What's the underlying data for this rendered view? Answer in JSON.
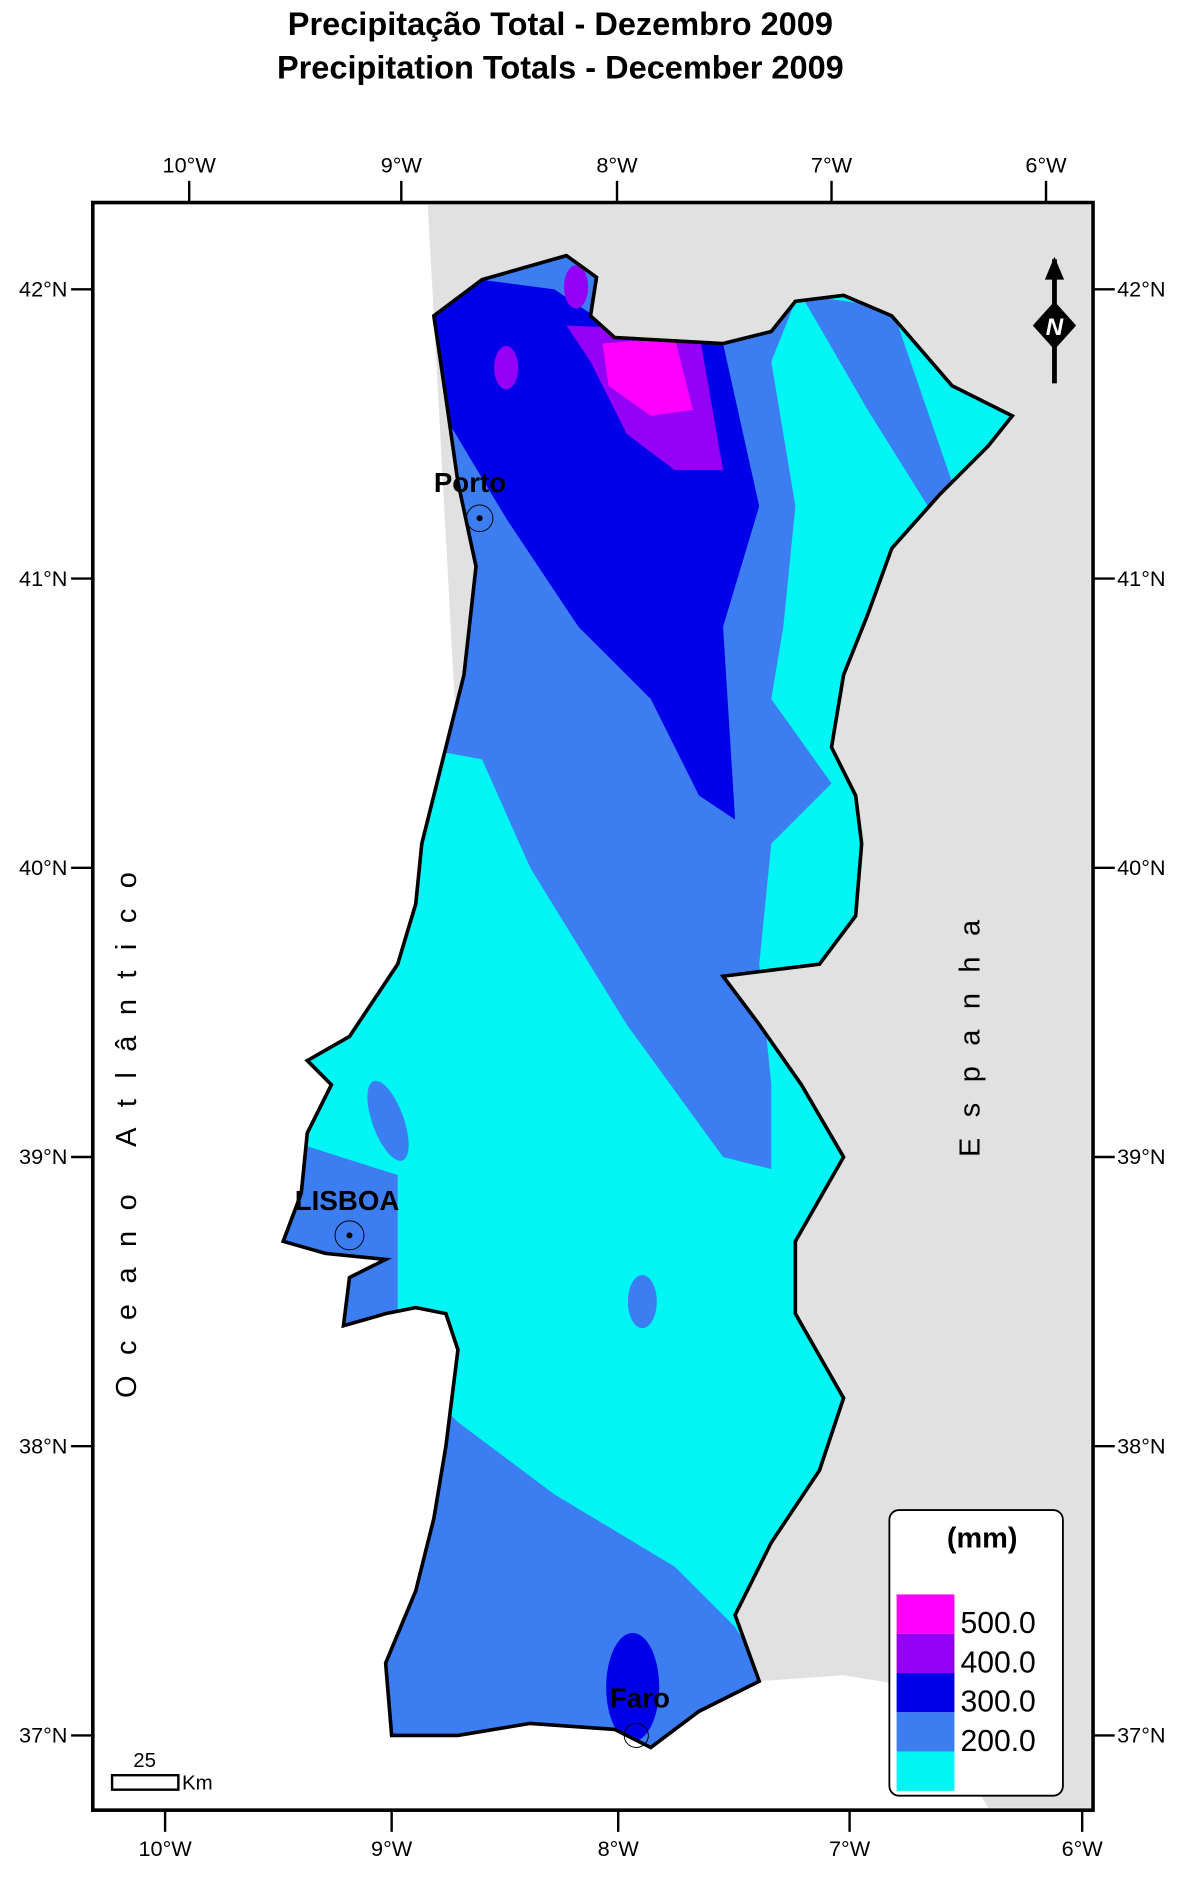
{
  "title": [
    "Precipitação Total - Dezembro 2009",
    "Precipitation Totals -  December 2009"
  ],
  "graticule": {
    "top": [
      "10°W",
      "9°W",
      "8°W",
      "7°W",
      "6°W"
    ],
    "bottom": [
      "10°W",
      "9°W",
      "8°W",
      "7°W",
      "6°W"
    ],
    "left": [
      "42°N",
      "41°N",
      "40°N",
      "39°N",
      "38°N",
      "37°N"
    ],
    "right": [
      "42°N",
      "41°N",
      "40°N",
      "39°N",
      "38°N",
      "37°N"
    ]
  },
  "labels": {
    "ocean": "Oceano Atlântico",
    "country": "Espanha",
    "cities": [
      "Porto",
      "LISBOA",
      "Faro"
    ]
  },
  "scale_bar": {
    "value": "25",
    "unit": "Km"
  },
  "legend": {
    "title": "(mm)",
    "labels": [
      "500.0",
      "400.0",
      "300.0",
      "200.0"
    ],
    "colors": [
      "#ff00ff",
      "#9400f5",
      "#0000e8",
      "#3c7ef2",
      "#00f5f5"
    ]
  }
}
